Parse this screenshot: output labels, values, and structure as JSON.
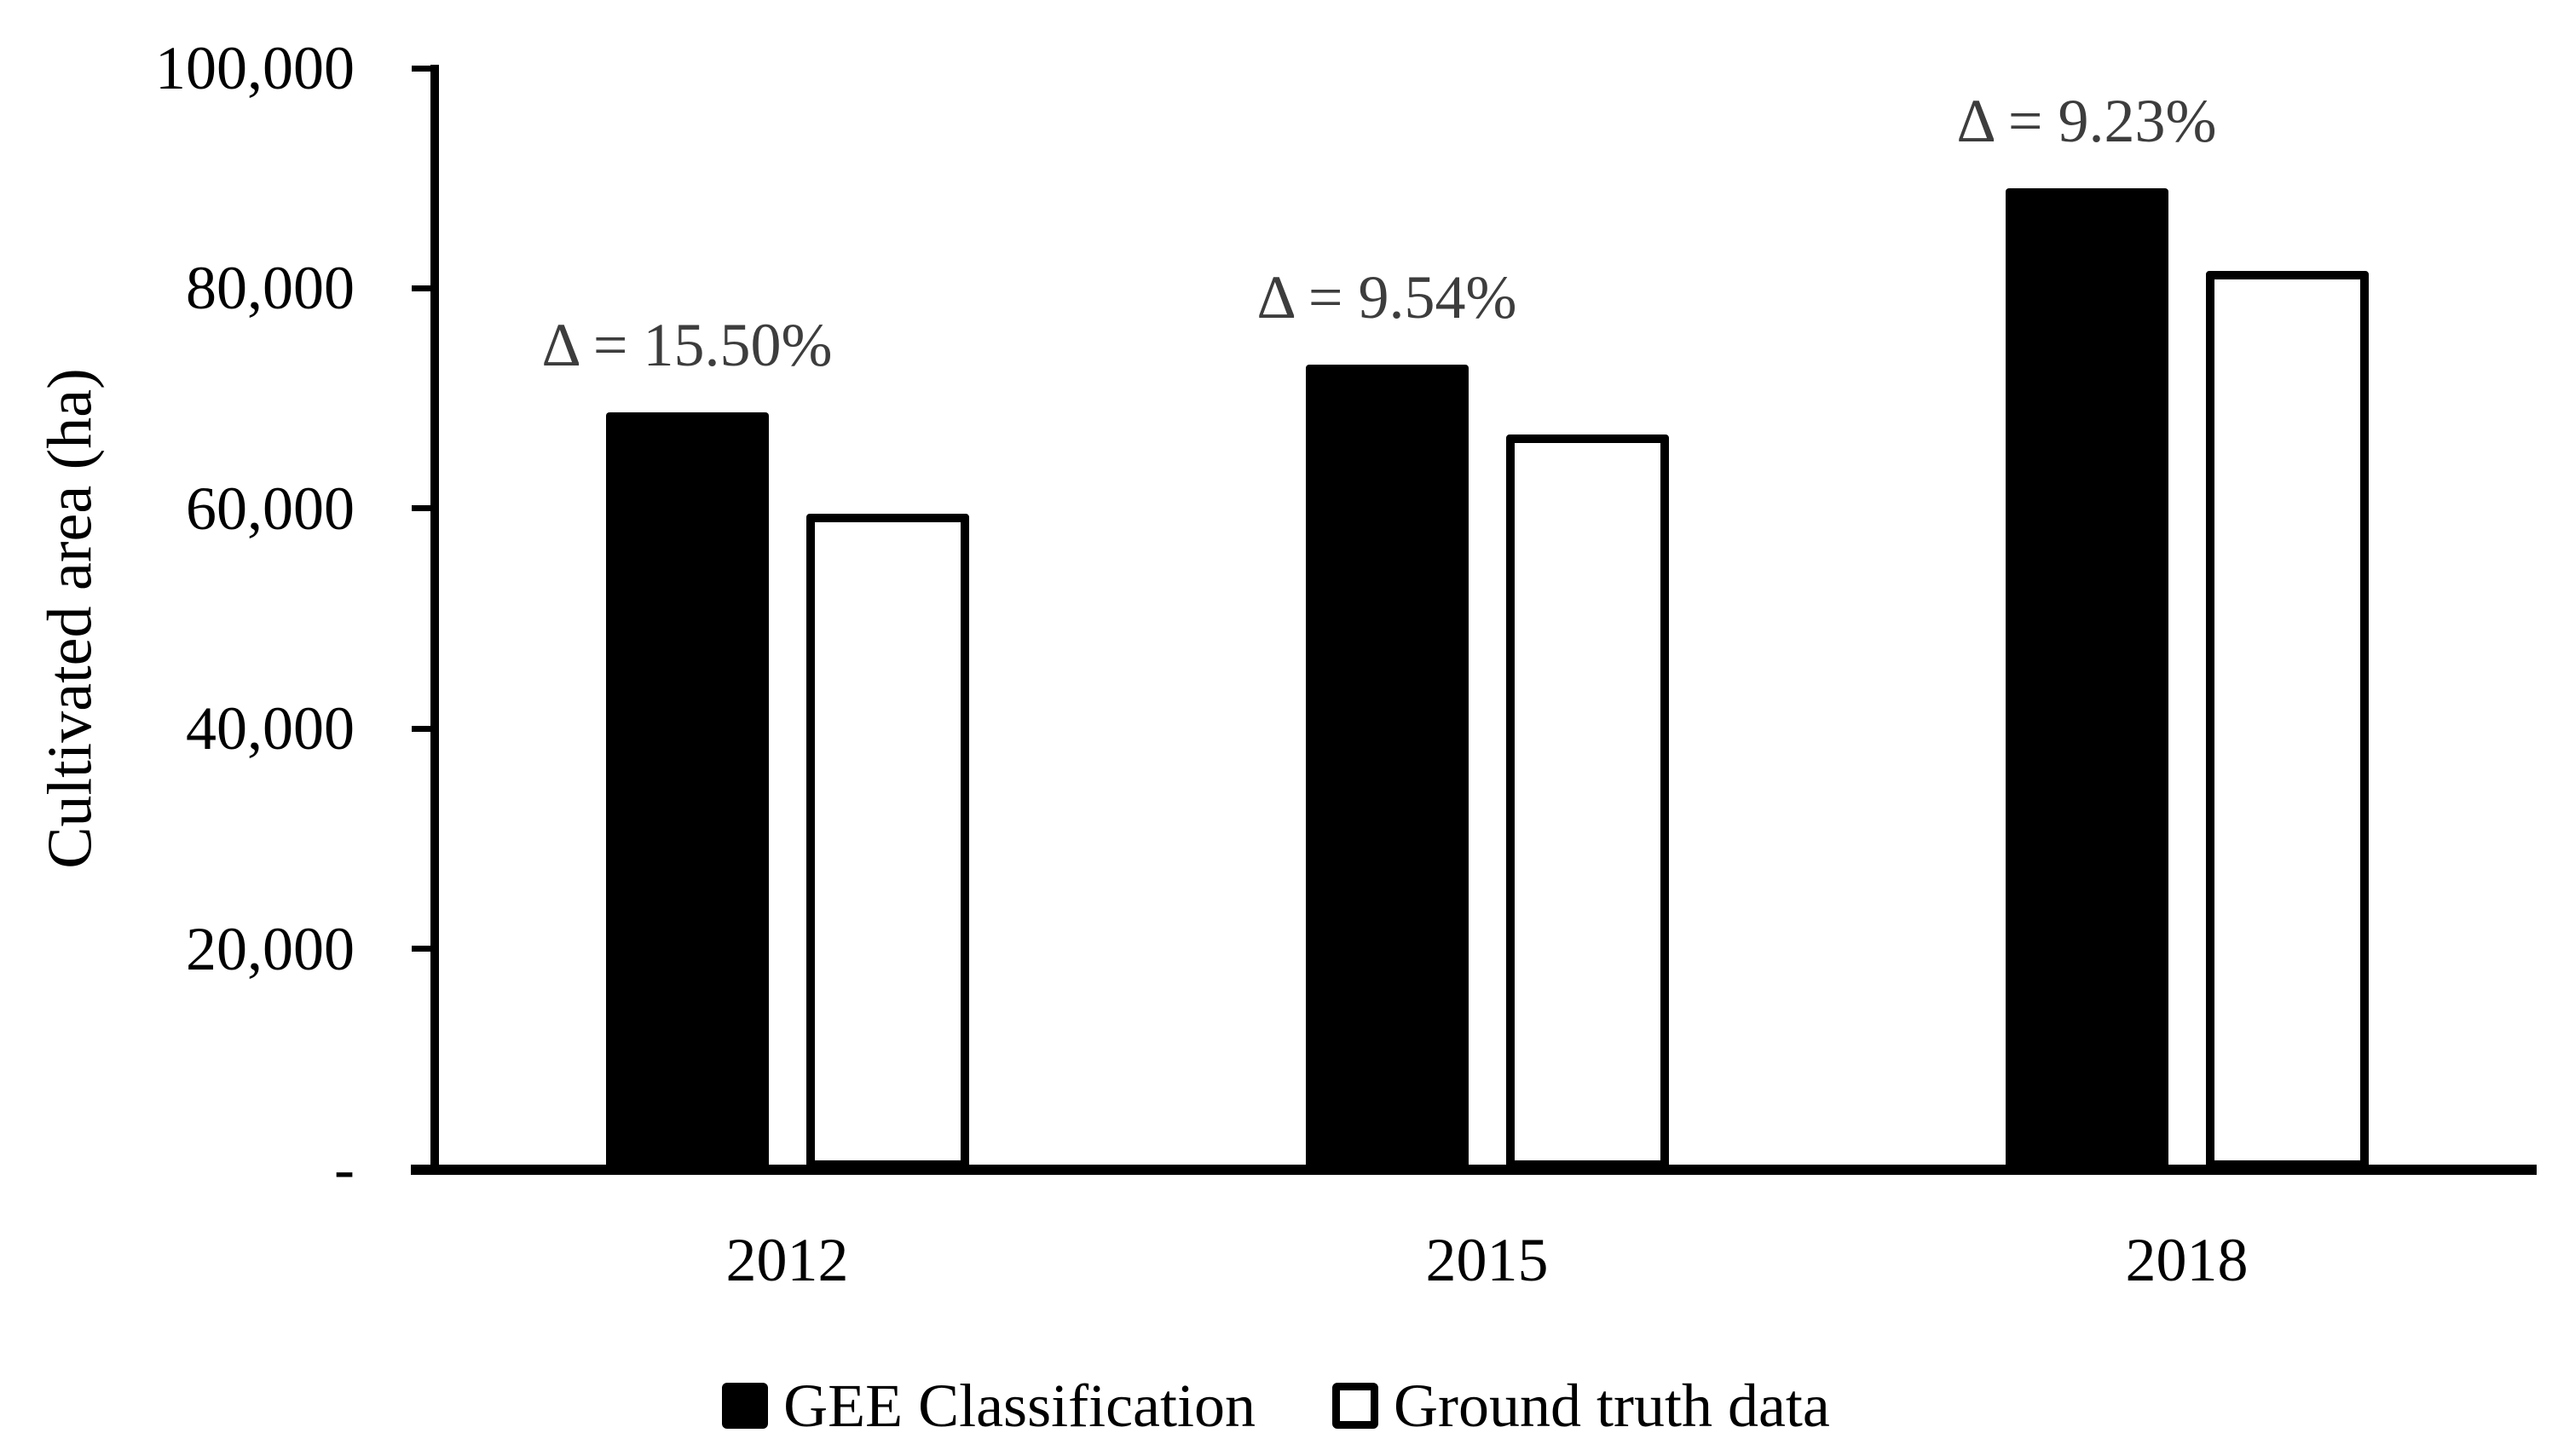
{
  "figure": {
    "background": "#ffffff",
    "text_color": "#000000"
  },
  "chart_data": {
    "type": "bar",
    "title": "",
    "xlabel": "",
    "ylabel": "Cultivated area (ha)",
    "categories": [
      "2012",
      "2015",
      "2018"
    ],
    "series": [
      {
        "name": "GEE Classification",
        "values": [
          68700,
          73100,
          89100
        ],
        "fill": "#000000",
        "border": "#000000"
      },
      {
        "name": "Ground truth data",
        "values": [
          59500,
          66700,
          81600
        ],
        "fill": "#ffffff",
        "border": "#000000"
      }
    ],
    "annotations": [
      {
        "category": "2012",
        "text": "Δ = 15.50%"
      },
      {
        "category": "2015",
        "text": "Δ = 9.54%"
      },
      {
        "category": "2018",
        "text": "Δ = 9.23%"
      }
    ],
    "annotation_color": "#3d3d3d",
    "ylim": [
      0,
      100000
    ],
    "yticks": [
      {
        "value": 100000,
        "label": "100,000"
      },
      {
        "value": 80000,
        "label": "80,000"
      },
      {
        "value": 60000,
        "label": "60,000"
      },
      {
        "value": 40000,
        "label": "40,000"
      },
      {
        "value": 20000,
        "label": "20,000"
      },
      {
        "value": 0,
        "label": "-"
      }
    ],
    "grid": false,
    "legend_position": "bottom"
  }
}
